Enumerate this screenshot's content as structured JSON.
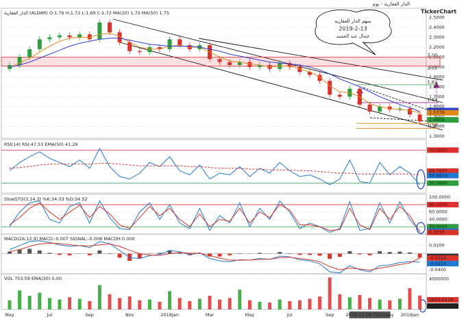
{
  "chart_data": [
    {
      "type": "candlestick",
      "title": "الدار العقارية - يوم",
      "brand": "TickerChart",
      "subtitle": "الدار العقارية (ALDAR) O:1.76 H:1.72 L:1.69 C:1.72   MA(20) 1.72   MA(50) 1.75",
      "annotations": [
        "سهم الدار العقاريه",
        "2019-2-13",
        "جمال عبد الحميد"
      ],
      "up_color": "#2e9e3e",
      "down_color": "#d9342b",
      "open": [
        1.98,
        2.02,
        2.1,
        2.18,
        2.28,
        2.3,
        2.32,
        2.3,
        2.33,
        2.28,
        2.45,
        2.35,
        2.25,
        2.16,
        2.15,
        2.2,
        2.18,
        2.28,
        2.22,
        2.18,
        2.22,
        2.08,
        2.05,
        2.02,
        2.05,
        2.0,
        2.02,
        1.98,
        2.04,
        2.0,
        1.95,
        1.92,
        1.86,
        1.72,
        1.7,
        1.78,
        1.62,
        1.55,
        1.6,
        1.57,
        1.58,
        1.52
      ],
      "high": [
        2.05,
        2.13,
        2.21,
        2.31,
        2.33,
        2.35,
        2.35,
        2.36,
        2.36,
        2.48,
        2.48,
        2.38,
        2.28,
        2.19,
        2.23,
        2.23,
        2.31,
        2.31,
        2.25,
        2.25,
        2.25,
        2.11,
        2.08,
        2.08,
        2.08,
        2.05,
        2.05,
        2.07,
        2.07,
        2.03,
        1.98,
        1.95,
        1.89,
        1.75,
        1.81,
        1.81,
        1.65,
        1.63,
        1.63,
        1.61,
        1.61,
        1.55
      ],
      "low": [
        1.95,
        1.99,
        2.07,
        2.15,
        2.25,
        2.27,
        2.27,
        2.27,
        2.25,
        2.25,
        2.32,
        2.22,
        2.13,
        2.12,
        2.12,
        2.15,
        2.15,
        2.19,
        2.15,
        2.15,
        2.05,
        2.02,
        1.99,
        1.99,
        1.97,
        1.97,
        1.95,
        1.95,
        1.97,
        1.92,
        1.89,
        1.83,
        1.69,
        1.67,
        1.67,
        1.59,
        1.52,
        1.52,
        1.54,
        1.54,
        1.49,
        1.42
      ],
      "close": [
        2.02,
        2.1,
        2.18,
        2.28,
        2.3,
        2.32,
        2.3,
        2.33,
        2.28,
        2.45,
        2.35,
        2.25,
        2.16,
        2.15,
        2.2,
        2.18,
        2.28,
        2.22,
        2.18,
        2.22,
        2.08,
        2.05,
        2.02,
        2.05,
        2.0,
        2.02,
        1.98,
        2.04,
        2.0,
        1.95,
        1.92,
        1.86,
        1.72,
        1.7,
        1.78,
        1.62,
        1.55,
        1.6,
        1.57,
        1.58,
        1.52,
        1.45
      ],
      "series": [
        {
          "color": "#e08a1e",
          "values": [
            2.0,
            2.04,
            2.09,
            2.15,
            2.21,
            2.26,
            2.29,
            2.3,
            2.3,
            2.33,
            2.34,
            2.31,
            2.25,
            2.2,
            2.18,
            2.18,
            2.21,
            2.22,
            2.2,
            2.2,
            2.15,
            2.1,
            2.06,
            2.05,
            2.03,
            2.02,
            2.0,
            2.01,
            2.01,
            1.98,
            1.95,
            1.9,
            1.81,
            1.75,
            1.74,
            1.7,
            1.63,
            1.6,
            1.58,
            1.57,
            1.56,
            1.54
          ]
        },
        {
          "color": "#2a3fd6",
          "values": [
            2.0,
            2.02,
            2.05,
            2.09,
            2.13,
            2.17,
            2.21,
            2.24,
            2.26,
            2.28,
            2.29,
            2.29,
            2.27,
            2.25,
            2.23,
            2.22,
            2.21,
            2.21,
            2.21,
            2.2,
            2.18,
            2.16,
            2.13,
            2.11,
            2.09,
            2.07,
            2.05,
            2.04,
            2.03,
            2.02,
            2.0,
            1.97,
            1.93,
            1.88,
            1.84,
            1.8,
            1.75,
            1.7,
            1.66,
            1.62,
            1.59,
            1.55
          ]
        }
      ],
      "ylim": [
        1.28,
        2.58
      ],
      "yticks": [
        {
          "value": 1.3,
          "label": "1.3000"
        },
        {
          "value": 1.4,
          "label": "1.4000"
        },
        {
          "value": 1.5,
          "label": "1.5000"
        },
        {
          "value": 1.6,
          "label": "1.6000"
        },
        {
          "value": 1.7,
          "label": "1.7000"
        },
        {
          "value": 1.8,
          "label": "1.8000"
        },
        {
          "value": 1.9,
          "label": "1.9000"
        },
        {
          "value": 2.0,
          "label": "2.0000"
        },
        {
          "value": 2.1,
          "label": "2.1000"
        },
        {
          "value": 2.2,
          "label": "2.2000"
        },
        {
          "value": 2.3,
          "label": "2.3000"
        },
        {
          "value": 2.4,
          "label": "2.4000"
        },
        {
          "value": 2.5,
          "label": "2.5000"
        }
      ],
      "zone": [
        {
          "value": 2.01,
          "label": "2.01"
        },
        {
          "value": 2.1,
          "label": "2.10"
        }
      ],
      "zone_color": "#e03030",
      "levels": [
        {
          "value": 1.82,
          "label": "1.82",
          "color": "#3a9a3a"
        },
        {
          "value": 1.64,
          "label": "1.64",
          "color": "#a0209a"
        },
        {
          "value": 1.43,
          "label": "1.43",
          "color": "#e08a1e"
        },
        {
          "value": 1.38,
          "label": "1.38",
          "color": "#e08a1e"
        }
      ],
      "tags": [
        {
          "value": 1.5462,
          "label": "1.5462",
          "color": "#2a3fd6"
        },
        {
          "value": 1.5376,
          "label": "1.5376",
          "color": "#e08a1e"
        },
        {
          "value": 1.48,
          "label": "1.4800",
          "color": "#2e9e3e"
        }
      ]
    },
    {
      "type": "line",
      "subtitle": "RSI(14)  RSI:47.53   EMA(50)  41.26",
      "series": [
        {
          "color": "#1f78d1",
          "values": [
            45,
            55,
            62,
            68,
            60,
            55,
            50,
            58,
            48,
            72,
            50,
            38,
            35,
            42,
            55,
            50,
            62,
            45,
            40,
            52,
            35,
            42,
            40,
            50,
            38,
            48,
            42,
            55,
            45,
            38,
            40,
            35,
            28,
            35,
            58,
            32,
            30,
            55,
            40,
            50,
            42,
            28
          ]
        },
        {
          "color": "#d9342b",
          "dash": true,
          "values": [
            48,
            49,
            50,
            52,
            53,
            53,
            53,
            53,
            53,
            54,
            54,
            53,
            52,
            51,
            51,
            51,
            51,
            51,
            50,
            50,
            49,
            48,
            48,
            48,
            47,
            47,
            46,
            46,
            46,
            45,
            45,
            44,
            43,
            42,
            42,
            41,
            41,
            41,
            41,
            41,
            41,
            40
          ]
        }
      ],
      "ylim": [
        18,
        81
      ],
      "levels": [
        {
          "value": 70,
          "label": "70.0000",
          "color": "#e03030"
        },
        {
          "value": 30,
          "label": "30.0000",
          "color": "#2e9e3e"
        }
      ],
      "tags": [
        {
          "value": 43.7637,
          "label": "43.7637",
          "color": "#d9342b"
        },
        {
          "value": 39.9604,
          "label": "39.9604",
          "color": "#1f78d1"
        }
      ]
    },
    {
      "type": "line",
      "subtitle": "SlowSTO(3,14,3)  %K:34.03  %D:34.52",
      "series": [
        {
          "color": "#1f78d1",
          "values": [
            20,
            60,
            85,
            90,
            40,
            30,
            75,
            85,
            30,
            90,
            45,
            15,
            12,
            60,
            85,
            40,
            80,
            30,
            15,
            70,
            10,
            50,
            30,
            85,
            20,
            70,
            40,
            90,
            60,
            15,
            30,
            20,
            5,
            15,
            88,
            10,
            15,
            85,
            30,
            88,
            40,
            6.5
          ]
        },
        {
          "color": "#d9342b",
          "values": [
            25,
            45,
            70,
            85,
            60,
            40,
            60,
            78,
            45,
            75,
            55,
            25,
            15,
            45,
            75,
            50,
            70,
            40,
            20,
            55,
            20,
            40,
            35,
            70,
            30,
            60,
            45,
            80,
            65,
            25,
            25,
            20,
            10,
            12,
            70,
            25,
            12,
            70,
            40,
            75,
            50,
            6.3
          ]
        }
      ],
      "ylim": [
        0,
        104
      ],
      "yticks": [
        {
          "value": 100,
          "label": "100.0000"
        },
        {
          "value": 60,
          "label": "60.0000"
        },
        {
          "value": 40,
          "label": "40.0000"
        }
      ],
      "levels": [
        {
          "value": 80,
          "label": "80.0000",
          "color": "#e03030"
        },
        {
          "value": 20,
          "label": "20.0000",
          "color": "#2e9e3e"
        }
      ],
      "tags": [
        {
          "value": 6.5333,
          "label": "6.5333",
          "color": "#1f78d1"
        },
        {
          "value": 6.3333,
          "label": "6.3333",
          "color": "#d9342b"
        }
      ]
    },
    {
      "type": "line",
      "subtitle": "MACD(26,12,9)  MACD:-0.007  SIGNAL:-0.008  MACDH:0.000",
      "histogram": {
        "up_color": "#555555",
        "down_color": "#d9342b",
        "values": [
          0.005,
          0.01,
          0.012,
          0.008,
          0.002,
          -0.003,
          -0.004,
          0.0,
          -0.004,
          0.008,
          0.001,
          -0.01,
          -0.018,
          -0.012,
          -0.001,
          0.002,
          0.008,
          0.002,
          -0.004,
          0.001,
          -0.007,
          -0.007,
          -0.004,
          0.001,
          0.0,
          0.002,
          0.0,
          0.004,
          0.001,
          -0.003,
          -0.003,
          -0.005,
          -0.013,
          -0.008,
          0.006,
          -0.002,
          -0.004,
          0.006,
          0.004,
          0.005,
          0.003,
          -0.01
        ]
      },
      "series": [
        {
          "color": "#1f78d1",
          "values": [
            0.01,
            0.02,
            0.03,
            0.032,
            0.028,
            0.022,
            0.018,
            0.02,
            0.015,
            0.03,
            0.025,
            0.008,
            -0.01,
            -0.012,
            -0.005,
            -0.002,
            0.008,
            0.005,
            -0.003,
            0.002,
            -0.012,
            -0.018,
            -0.02,
            -0.015,
            -0.016,
            -0.012,
            -0.014,
            -0.006,
            -0.008,
            -0.015,
            -0.018,
            -0.025,
            -0.045,
            -0.048,
            -0.03,
            -0.04,
            -0.045,
            -0.03,
            -0.028,
            -0.022,
            -0.02,
            -0.021
          ]
        },
        {
          "color": "#d9342b",
          "values": [
            0.005,
            0.01,
            0.018,
            0.024,
            0.026,
            0.025,
            0.022,
            0.02,
            0.019,
            0.022,
            0.024,
            0.018,
            0.008,
            0.0,
            -0.004,
            -0.004,
            0.0,
            0.003,
            0.001,
            0.001,
            -0.005,
            -0.011,
            -0.016,
            -0.016,
            -0.016,
            -0.014,
            -0.014,
            -0.01,
            -0.009,
            -0.012,
            -0.015,
            -0.02,
            -0.032,
            -0.04,
            -0.036,
            -0.038,
            -0.041,
            -0.036,
            -0.032,
            -0.027,
            -0.023,
            -0.011
          ]
        }
      ],
      "ylim": [
        -0.05,
        0.045
      ],
      "yticks": [
        {
          "value": 0.02,
          "label": "0.0200"
        },
        {
          "value": -0.04,
          "label": "-0.0400"
        }
      ],
      "tags": [
        {
          "value": -0.0101,
          "label": "-0.0101",
          "color": "#333333"
        },
        {
          "value": -0.011,
          "label": "-0.0110",
          "color": "#d9342b"
        },
        {
          "value": -0.0213,
          "label": "-0.0213",
          "color": "#1f78d1"
        }
      ]
    },
    {
      "type": "bar",
      "subtitle": "VOL  753.59   EMA(30)  0.00",
      "up_color": "#46b04a",
      "down_color": "#e05050",
      "values": [
        1200000,
        2500000,
        1800000,
        2200000,
        1500000,
        1300000,
        1600000,
        1400000,
        1100000,
        3200000,
        2000000,
        1500000,
        1700000,
        1200000,
        1300000,
        1000000,
        2400000,
        1500000,
        1100000,
        1400000,
        1800000,
        1300000,
        1500000,
        2600000,
        1200000,
        1000000,
        900000,
        1300000,
        1100000,
        1200000,
        1400000,
        1700000,
        4200000,
        2000000,
        1600000,
        1900000,
        1500000,
        1300000,
        1200000,
        1400000,
        2800000,
        1833611
      ],
      "categories": [
        "May",
        null,
        null,
        null,
        "Jul",
        null,
        null,
        null,
        "Sep",
        null,
        null,
        null,
        "Nov",
        null,
        null,
        null,
        "2018Jan",
        null,
        null,
        null,
        "Mar",
        null,
        null,
        null,
        "May",
        null,
        null,
        null,
        "Jul",
        null,
        null,
        null,
        "Sep",
        null,
        null,
        null,
        "2018-11-08 Thursday",
        null,
        null,
        null,
        "2019Jan",
        null
      ],
      "ylim": [
        0,
        4500000
      ],
      "yticks": [
        4000000
      ],
      "tags": [
        {
          "value": 1833.6114,
          "label": "1833.6114",
          "color": "#d9342b"
        },
        {
          "value": 0.0002,
          "label": "0.0002",
          "color": "#222222"
        }
      ]
    }
  ]
}
